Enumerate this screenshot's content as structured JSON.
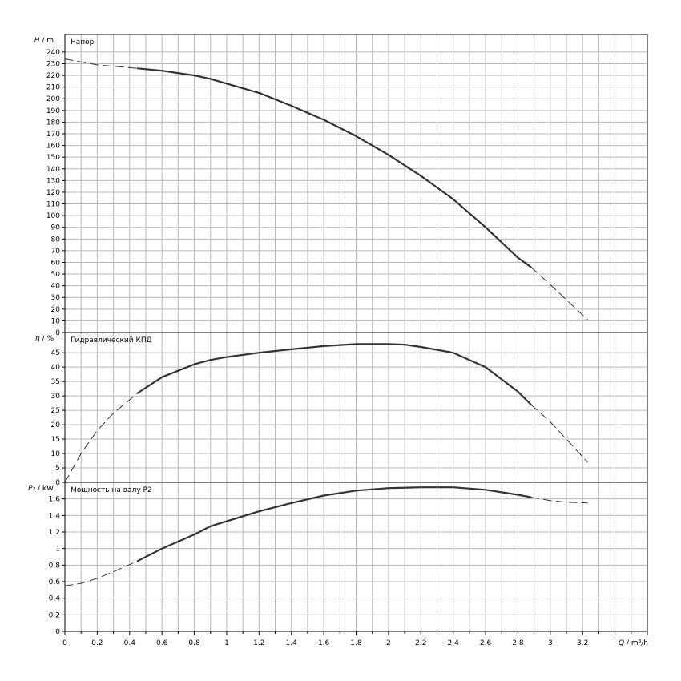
{
  "chart_data": {
    "type": "line",
    "x_axis": {
      "label_symbol": "Q",
      "label_unit": "m³/h",
      "range": [
        0,
        3.6
      ],
      "ticks": [
        "0",
        "0.2",
        "0.4",
        "0.6",
        "0.8",
        "1",
        "1.2",
        "1.4",
        "1.6",
        "1.8",
        "2",
        "2.2",
        "2.4",
        "2.6",
        "2.8",
        "3",
        "3.2"
      ]
    },
    "panels": [
      {
        "id": "head",
        "title": "Напор",
        "y_label_symbol": "H",
        "y_label_unit": "m",
        "ylim": [
          0,
          255
        ],
        "y_ticks": [
          0,
          10,
          20,
          30,
          40,
          50,
          60,
          70,
          80,
          90,
          100,
          110,
          120,
          130,
          140,
          150,
          160,
          170,
          180,
          190,
          200,
          210,
          220,
          230,
          240
        ],
        "solid": {
          "x": [
            0.45,
            0.6,
            0.8,
            0.9,
            1.0,
            1.2,
            1.4,
            1.6,
            1.8,
            2.0,
            2.2,
            2.4,
            2.6,
            2.8,
            2.88
          ],
          "y": [
            226,
            224,
            220,
            217,
            213,
            205,
            194,
            182,
            168,
            152,
            134,
            114,
            90,
            64,
            56
          ]
        },
        "dashed_start": {
          "x": [
            0,
            0.2,
            0.45
          ],
          "y": [
            234,
            229,
            226
          ]
        },
        "dashed_end": {
          "x": [
            2.88,
            3.0,
            3.1,
            3.23
          ],
          "y": [
            56,
            41,
            28,
            11
          ]
        }
      },
      {
        "id": "efficiency",
        "title": "Гидравлический КПД",
        "y_label_symbol": "η",
        "y_label_unit": "%",
        "ylim": [
          0,
          52
        ],
        "y_ticks": [
          0,
          5,
          10,
          15,
          20,
          25,
          30,
          35,
          40,
          45
        ],
        "solid": {
          "x": [
            0.45,
            0.6,
            0.8,
            0.9,
            1.0,
            1.2,
            1.4,
            1.6,
            1.8,
            2.0,
            2.1,
            2.2,
            2.4,
            2.6,
            2.8,
            2.88
          ],
          "y": [
            31,
            36.5,
            41,
            42.5,
            43.5,
            45,
            46.2,
            47.3,
            48,
            48,
            47.8,
            47,
            45,
            40,
            31.5,
            27
          ]
        },
        "dashed_start": {
          "x": [
            0,
            0.1,
            0.2,
            0.3,
            0.45
          ],
          "y": [
            0,
            10,
            18,
            24,
            31
          ]
        },
        "dashed_end": {
          "x": [
            2.88,
            3.0,
            3.1,
            3.23
          ],
          "y": [
            27,
            21,
            15,
            7
          ]
        }
      },
      {
        "id": "power",
        "title": "Мощность на валу P2",
        "y_label_symbol": "P₂",
        "y_label_unit": "kW",
        "ylim": [
          0,
          1.8
        ],
        "y_ticks": [
          "0",
          "0.2",
          "0.4",
          "0.6",
          "0.8",
          "1",
          "1.2",
          "1.4",
          "1.6"
        ],
        "solid": {
          "x": [
            0.45,
            0.6,
            0.8,
            0.9,
            1.0,
            1.2,
            1.4,
            1.6,
            1.8,
            2.0,
            2.2,
            2.4,
            2.6,
            2.8,
            2.88
          ],
          "y": [
            0.85,
            1.0,
            1.17,
            1.27,
            1.33,
            1.45,
            1.55,
            1.64,
            1.7,
            1.73,
            1.74,
            1.74,
            1.71,
            1.65,
            1.62
          ]
        },
        "dashed_start": {
          "x": [
            0,
            0.1,
            0.2,
            0.3,
            0.45
          ],
          "y": [
            0.55,
            0.58,
            0.64,
            0.72,
            0.85
          ]
        },
        "dashed_end": {
          "x": [
            2.88,
            3.0,
            3.1,
            3.23
          ],
          "y": [
            1.62,
            1.58,
            1.56,
            1.55
          ]
        }
      }
    ],
    "grid": true,
    "line_color": "#333333",
    "grid_color": "#b8b8b8"
  }
}
